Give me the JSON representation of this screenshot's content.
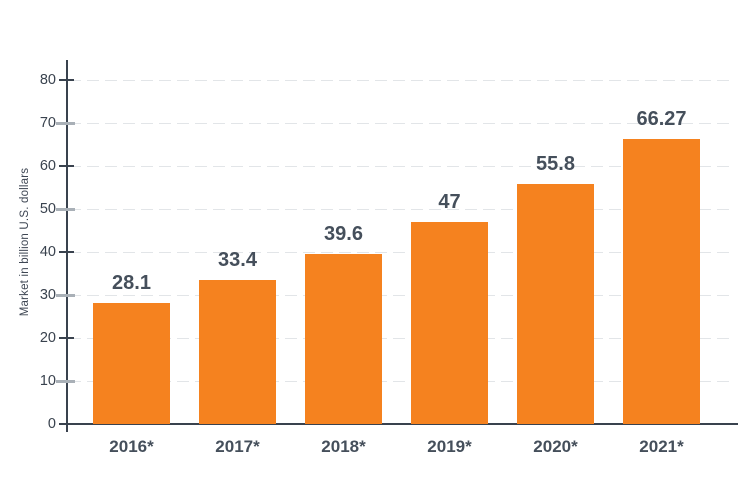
{
  "chart_data": {
    "type": "bar",
    "title": "",
    "xlabel": "",
    "ylabel": "Market in billion U.S. dollars",
    "categories": [
      "2016*",
      "2017*",
      "2018*",
      "2019*",
      "2020*",
      "2021*"
    ],
    "values": [
      28.1,
      33.4,
      39.6,
      47,
      55.8,
      66.27
    ],
    "value_labels": [
      "28.1",
      "33.4",
      "39.6",
      "47",
      "55.8",
      "66.27"
    ],
    "yticks": [
      0,
      10,
      20,
      30,
      40,
      50,
      60,
      70,
      80
    ],
    "ylim": [
      0,
      80
    ],
    "grid": "horizontal dashed gridlines at each ytick",
    "legend": "none",
    "colors": {
      "bar": "#F5821F",
      "axis": "#39424E",
      "tick_minor": "#A9B0B7",
      "gridline": "#E2E5E8",
      "label": "#454F5B",
      "tick_label": "#39424E"
    }
  }
}
